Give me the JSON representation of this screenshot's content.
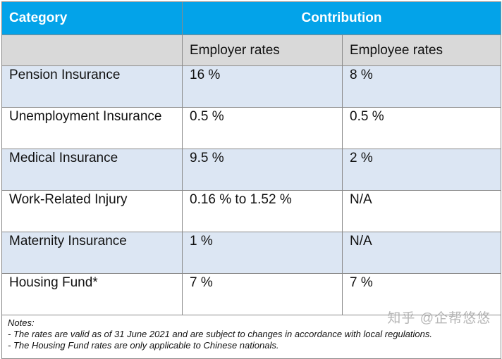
{
  "header": {
    "category": "Category",
    "contribution": "Contribution"
  },
  "subheader": {
    "employer": "Employer rates",
    "employee": "Employee rates"
  },
  "rows": [
    {
      "category": "Pension Insurance",
      "employer": "16 %",
      "employee": "8 %"
    },
    {
      "category": "Unemployment Insurance",
      "employer": "0.5 %",
      "employee": "0.5 %"
    },
    {
      "category": "Medical Insurance",
      "employer": "9.5 %",
      "employee": "2 %"
    },
    {
      "category": "Work-Related Injury",
      "employer": "0.16 % to 1.52 %",
      "employee": "N/A"
    },
    {
      "category": "Maternity Insurance",
      "employer": "1 %",
      "employee": "N/A"
    },
    {
      "category": "Housing Fund*",
      "employer": "7 %",
      "employee": "7 %"
    }
  ],
  "notes": {
    "title": "Notes:",
    "lines": [
      "- The rates are valid as of 31 June 2021 and are subject to changes in accordance with local regulations.",
      "- The Housing Fund rates are only applicable to Chinese nationals."
    ]
  },
  "watermark": "知乎 @企帮悠悠",
  "colors": {
    "header_bg": "#03a3e9",
    "subheader_bg": "#d9d9d9",
    "row_blue_bg": "#dce6f3",
    "row_white_bg": "#ffffff"
  }
}
